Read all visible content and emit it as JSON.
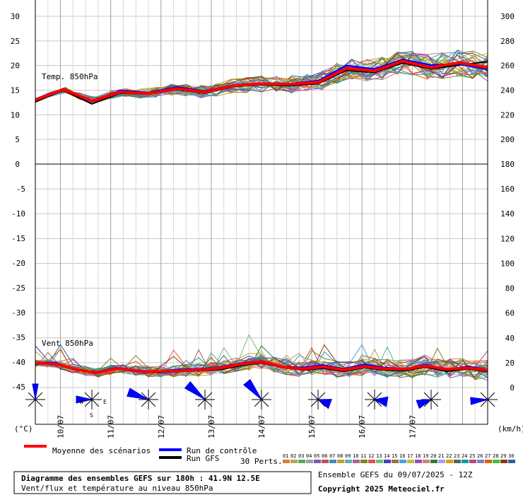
{
  "chart_data": {
    "type": "line",
    "panels": [
      {
        "name": "Temp. 850hPa",
        "ylim_left": [
          0,
          30
        ],
        "ylim_right": [
          180,
          300
        ],
        "left_ticks": [
          "30",
          "25",
          "20",
          "15",
          "10",
          "5",
          "0"
        ],
        "right_ticks": [
          "300",
          "280",
          "260",
          "240",
          "220",
          "200"
        ],
        "mean_values": [
          13.0,
          15.2,
          12.8,
          14.6,
          14.3,
          15.3,
          14.6,
          15.9,
          16.3,
          16.2,
          16.6,
          19.4,
          18.9,
          20.9,
          19.6,
          20.6,
          19.6
        ],
        "control_values": [
          13.0,
          15.3,
          12.6,
          14.9,
          14.5,
          15.6,
          14.8,
          16.0,
          16.4,
          16.3,
          16.9,
          20.0,
          19.3,
          21.2,
          20.1,
          20.3,
          19.2
        ],
        "gfs_values": [
          12.6,
          15.0,
          12.2,
          14.4,
          14.2,
          15.1,
          14.4,
          15.7,
          16.1,
          15.9,
          16.3,
          19.0,
          18.6,
          20.5,
          19.3,
          20.1,
          20.8
        ]
      },
      {
        "name": "Vent 850hPa",
        "ylim_left": [
          -45,
          0
        ],
        "ylim_right": [
          0,
          180
        ],
        "left_ticks": [
          "-5",
          "-10",
          "-15",
          "-20",
          "-25",
          "-30",
          "-35",
          "-40",
          "-45"
        ],
        "right_ticks": [
          "180",
          "160",
          "140",
          "120",
          "100",
          "80",
          "60",
          "40",
          "20",
          "0"
        ],
        "mean_values": [
          19.5,
          19.0,
          14.5,
          11.8,
          15.5,
          13.0,
          12.8,
          13.5,
          14.2,
          15.8,
          18.8,
          21.0,
          16.5,
          15.0,
          16.8,
          14.2,
          17.0,
          15.1,
          14.8,
          17.5,
          14.7,
          15.8,
          14.0
        ],
        "control_values": [
          20.0,
          20.0,
          14.0,
          12.5,
          16.0,
          13.5,
          13.0,
          14.5,
          15.0,
          16.5,
          19.5,
          21.5,
          17.0,
          16.0,
          18.0,
          15.0,
          18.5,
          16.0,
          15.0,
          18.5,
          14.0,
          17.0,
          14.5
        ],
        "gfs_values": [
          19.0,
          18.5,
          14.0,
          11.5,
          15.0,
          12.5,
          12.0,
          13.0,
          13.5,
          14.5,
          17.5,
          20.0,
          16.0,
          14.0,
          15.5,
          13.0,
          16.0,
          14.0,
          13.5,
          16.5,
          13.0,
          15.0,
          13.0
        ]
      }
    ],
    "x_ticks": [
      "10/07",
      "11/07",
      "12/07",
      "13/07",
      "14/07",
      "15/07",
      "16/07",
      "17/07"
    ],
    "wind_roses": 9,
    "units_left": "(°C)",
    "units_right": "(km/h)",
    "legend": {
      "mean": "Moyenne des scénarios",
      "control": "Run de contrôle",
      "gfs": "Run GFS",
      "perts": "30 Perts.",
      "pert_numbers": [
        "01",
        "02",
        "03",
        "04",
        "05",
        "06",
        "07",
        "08",
        "09",
        "10",
        "11",
        "12",
        "13",
        "14",
        "15",
        "16",
        "17",
        "18",
        "19",
        "20",
        "21",
        "22",
        "23",
        "24",
        "25",
        "26",
        "27",
        "28",
        "29",
        "30"
      ],
      "pert_colors": [
        "#e07b3a",
        "#b7a54f",
        "#5aa65a",
        "#a0a0a0",
        "#7b5bb0",
        "#c05050",
        "#3a8fc0",
        "#c0a030",
        "#60b0b0",
        "#b06090",
        "#808020",
        "#e05050",
        "#70c070",
        "#4040c0",
        "#a07040",
        "#50a0e0",
        "#c0c040",
        "#9050c0",
        "#d08080",
        "#308030",
        "#a0a0ff",
        "#e0a000",
        "#606060",
        "#00a0a0",
        "#c04080",
        "#8080c0",
        "#e06000",
        "#40c040",
        "#804000",
        "#3060a0"
      ],
      "mean_color": "#ff0000",
      "control_color": "#0000ff",
      "gfs_color": "#000000"
    }
  },
  "labels": {
    "temp_panel": "Temp. 850hPa",
    "wind_panel": "Vent 850hPa",
    "units_left": "(°C)",
    "units_right": "(km/h)",
    "wind_rose_w": "W",
    "wind_rose_e": "E",
    "wind_rose_s": "S"
  },
  "footer": {
    "title": "Diagramme des ensembles GEFS sur 180h : 41.9N 12.5E",
    "subtitle": "Vent/flux et température au niveau 850hPa",
    "run_info": "Ensemble GEFS du 09/07/2025 - 12Z",
    "copyright": "Copyright 2025 Meteociel.fr"
  }
}
